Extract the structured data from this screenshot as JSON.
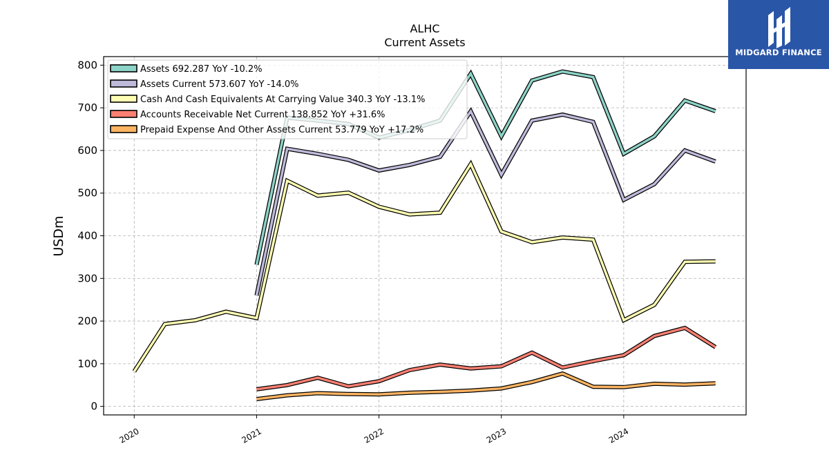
{
  "logo": {
    "text": "MIDGARD FINANCE",
    "color": "#2a56a8"
  },
  "chart_data": {
    "type": "line",
    "title": "ALHC",
    "subtitle": "Current  Assets",
    "ylabel": "USDm",
    "xlabel": "",
    "ylim": [
      -20,
      820
    ],
    "xlim": [
      2019.75,
      2025.0
    ],
    "yticks": [
      0,
      100,
      200,
      300,
      400,
      500,
      600,
      700,
      800
    ],
    "xticks": [
      {
        "value": 2020,
        "label": "2020"
      },
      {
        "value": 2021,
        "label": "2021"
      },
      {
        "value": 2022,
        "label": "2022"
      },
      {
        "value": 2023,
        "label": "2023"
      },
      {
        "value": 2024,
        "label": "2024"
      }
    ],
    "grid": true,
    "legend_position": "top-left",
    "series": [
      {
        "name": "Assets  692.287 YoY -10.2%",
        "color": "#8dd3c7",
        "x": [
          2021.0,
          2021.25,
          2021.5,
          2021.75,
          2022.0,
          2022.25,
          2022.5,
          2022.75,
          2023.0,
          2023.25,
          2023.5,
          2023.75,
          2024.0,
          2024.25,
          2024.5,
          2024.75
        ],
        "values": [
          332,
          677,
          670,
          662,
          630,
          648,
          670,
          780,
          633,
          764,
          785,
          772,
          592,
          633,
          717,
          692
        ]
      },
      {
        "name": "Assets Current  573.607 YoY -14.0%",
        "color": "#bebada",
        "x": [
          2021.0,
          2021.25,
          2021.5,
          2021.75,
          2022.0,
          2022.25,
          2022.5,
          2022.75,
          2023.0,
          2023.25,
          2023.5,
          2023.75,
          2024.0,
          2024.25,
          2024.5,
          2024.75
        ],
        "values": [
          260,
          604,
          592,
          578,
          553,
          566,
          585,
          692,
          543,
          670,
          684,
          667,
          484,
          521,
          600,
          574
        ]
      },
      {
        "name": "Cash And Cash Equivalents At Carrying Value  340.3 YoY -13.1%",
        "color": "#ffffb3",
        "x": [
          2020.0,
          2020.25,
          2020.5,
          2020.75,
          2021.0,
          2021.25,
          2021.5,
          2021.75,
          2022.0,
          2022.25,
          2022.5,
          2022.75,
          2023.0,
          2023.25,
          2023.5,
          2023.75,
          2024.0,
          2024.25,
          2024.5,
          2024.75
        ],
        "values": [
          82,
          193,
          202,
          222,
          207,
          529,
          494,
          501,
          468,
          450,
          454,
          568,
          410,
          385,
          396,
          391,
          202,
          238,
          339,
          340
        ]
      },
      {
        "name": "Accounts Receivable Net Current  138.852 YoY +31.6%",
        "color": "#fb8072",
        "x": [
          2021.0,
          2021.25,
          2021.5,
          2021.75,
          2022.0,
          2022.25,
          2022.5,
          2022.75,
          2023.0,
          2023.25,
          2023.5,
          2023.75,
          2024.0,
          2024.25,
          2024.5,
          2024.75
        ],
        "values": [
          40,
          50,
          67,
          47,
          59,
          85,
          98,
          89,
          94,
          126,
          91,
          106,
          120,
          165,
          184,
          139
        ]
      },
      {
        "name": "Prepaid Expense And Other Assets Current  53.779 YoY +17.2%",
        "color": "#fdb462",
        "x": [
          2021.0,
          2021.25,
          2021.5,
          2021.75,
          2022.0,
          2022.25,
          2022.5,
          2022.75,
          2023.0,
          2023.25,
          2023.5,
          2023.75,
          2024.0,
          2024.25,
          2024.5,
          2024.75
        ],
        "values": [
          17,
          26,
          31,
          29,
          28,
          32,
          34,
          37,
          42,
          57,
          77,
          46,
          45,
          53,
          51,
          54
        ]
      }
    ]
  }
}
